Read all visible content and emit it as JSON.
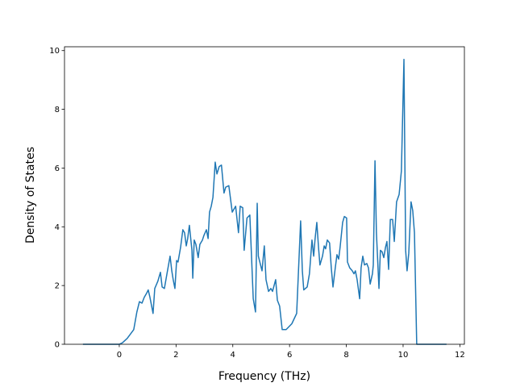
{
  "chart_data": {
    "type": "line",
    "xlabel": "Frequency (THz)",
    "ylabel": "Density of States",
    "x": [
      -1.28,
      0,
      0.11,
      0.28,
      0.51,
      0.62,
      0.71,
      0.8,
      0.88,
      0.97,
      1.02,
      1.08,
      1.19,
      1.25,
      1.36,
      1.45,
      1.51,
      1.59,
      1.68,
      1.79,
      1.85,
      1.9,
      1.96,
      2.02,
      2.07,
      2.16,
      2.24,
      2.3,
      2.36,
      2.41,
      2.47,
      2.56,
      2.59,
      2.64,
      2.7,
      2.78,
      2.84,
      2.93,
      2.98,
      3.07,
      3.13,
      3.18,
      3.24,
      3.3,
      3.38,
      3.44,
      3.52,
      3.6,
      3.69,
      3.75,
      3.86,
      3.98,
      4.1,
      4.2,
      4.26,
      4.35,
      4.4,
      4.5,
      4.6,
      4.72,
      4.8,
      4.86,
      4.9,
      5.03,
      5.11,
      5.17,
      5.26,
      5.34,
      5.4,
      5.51,
      5.57,
      5.65,
      5.74,
      5.88,
      6.08,
      6.25,
      6.39,
      6.45,
      6.5,
      6.62,
      6.7,
      6.79,
      6.85,
      6.9,
      6.96,
      7.02,
      7.07,
      7.16,
      7.22,
      7.27,
      7.33,
      7.41,
      7.47,
      7.53,
      7.61,
      7.67,
      7.73,
      7.78,
      7.87,
      7.93,
      8.01,
      8.04,
      8.12,
      8.21,
      8.27,
      8.32,
      8.38,
      8.47,
      8.52,
      8.58,
      8.64,
      8.72,
      8.78,
      8.84,
      8.92,
      8.95,
      9.01,
      9.06,
      9.15,
      9.2,
      9.26,
      9.32,
      9.38,
      9.43,
      9.49,
      9.55,
      9.63,
      9.69,
      9.77,
      9.86,
      9.94,
      10.03,
      10.09,
      10.14,
      10.2,
      10.28,
      10.34,
      10.4,
      10.48,
      11.53
    ],
    "values": [
      0,
      0,
      0.05,
      0.2,
      0.5,
      1.1,
      1.45,
      1.4,
      1.6,
      1.75,
      1.85,
      1.6,
      1.05,
      1.9,
      2.15,
      2.45,
      1.95,
      1.9,
      2.4,
      3.0,
      2.5,
      2.2,
      1.9,
      2.85,
      2.8,
      3.3,
      3.9,
      3.8,
      3.35,
      3.6,
      4.05,
      3.2,
      2.25,
      3.55,
      3.4,
      2.95,
      3.4,
      3.55,
      3.7,
      3.9,
      3.6,
      4.5,
      4.7,
      5.0,
      6.2,
      5.8,
      6.05,
      6.1,
      5.15,
      5.35,
      5.4,
      4.5,
      4.7,
      3.8,
      4.7,
      4.65,
      3.2,
      4.3,
      4.4,
      1.55,
      1.1,
      4.8,
      3.0,
      2.5,
      3.35,
      2.2,
      1.8,
      1.9,
      1.8,
      2.2,
      1.5,
      1.3,
      0.5,
      0.5,
      0.7,
      1.05,
      4.2,
      2.5,
      1.85,
      1.95,
      2.4,
      3.55,
      3.0,
      3.6,
      4.15,
      3.3,
      2.7,
      3.0,
      3.35,
      3.25,
      3.55,
      3.45,
      2.6,
      1.95,
      2.6,
      3.05,
      2.9,
      3.3,
      4.15,
      4.35,
      4.3,
      2.8,
      2.6,
      2.5,
      2.4,
      2.5,
      2.2,
      1.55,
      2.6,
      3.0,
      2.7,
      2.75,
      2.6,
      2.05,
      2.4,
      2.7,
      6.25,
      3.8,
      1.9,
      3.2,
      3.15,
      2.95,
      3.3,
      3.5,
      2.55,
      4.25,
      4.25,
      3.5,
      4.85,
      5.1,
      5.9,
      9.7,
      3.2,
      2.5,
      3.1,
      4.85,
      4.55,
      3.8,
      0,
      0
    ],
    "color": "#1f77b4",
    "xlim": [
      -1.93,
      12.16
    ],
    "ylim": [
      0,
      10.13
    ],
    "xticks": [
      0,
      2,
      4,
      6,
      8,
      10,
      12
    ],
    "yticks": [
      0,
      2,
      4,
      6,
      8,
      10
    ],
    "grid": false
  }
}
